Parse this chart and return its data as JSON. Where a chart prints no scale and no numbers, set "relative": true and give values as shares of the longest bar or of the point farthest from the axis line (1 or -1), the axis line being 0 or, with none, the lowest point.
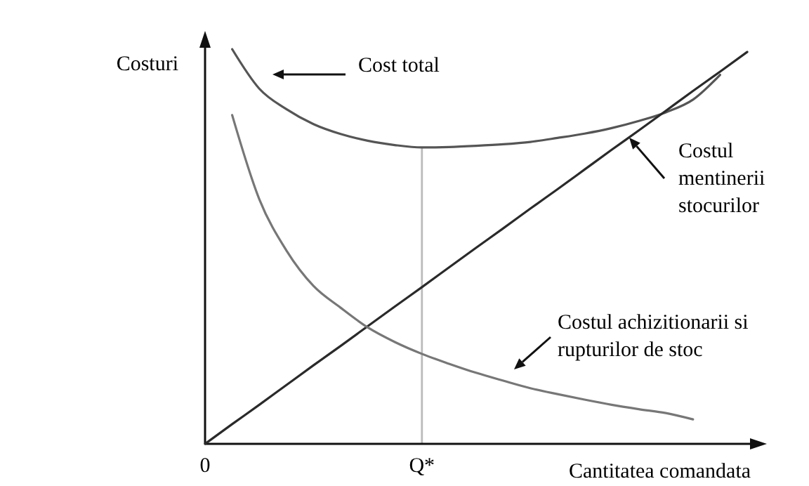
{
  "chart_data": {
    "type": "line",
    "relative": true,
    "ylabel": "Costuri",
    "xlabel": "Cantitatea comandata",
    "marker": "none",
    "line_style": "solid",
    "grid": false,
    "categories": [
      "0",
      null,
      null,
      null,
      null,
      null,
      null,
      null,
      "Q*",
      null,
      null,
      null,
      null,
      null,
      null,
      null,
      null,
      null,
      null,
      null,
      null
    ],
    "series": [
      {
        "color": "#555555",
        "values": [
          null,
          1,
          0.9,
          0.848,
          0.81,
          0.785,
          0.768,
          0.757,
          0.751,
          0.752,
          0.755,
          0.759,
          0.765,
          0.775,
          0.786,
          0.8,
          0.818,
          0.84,
          0.872,
          0.935,
          null
        ]
      },
      {
        "color": "#2a2a2a",
        "values": [
          0,
          0.05,
          0.099,
          0.149,
          0.199,
          0.248,
          0.298,
          0.348,
          0.397,
          0.447,
          0.497,
          0.546,
          0.596,
          0.645,
          0.695,
          0.745,
          0.794,
          0.844,
          0.894,
          0.943,
          0.993
        ]
      },
      {
        "color": "#777777",
        "values": [
          null,
          0.833,
          0.62,
          0.49,
          0.4,
          0.345,
          0.295,
          0.258,
          0.228,
          0.203,
          0.18,
          0.16,
          0.141,
          0.126,
          0.112,
          0.099,
          0.088,
          0.078,
          0.062,
          null,
          null
        ]
      }
    ],
    "ref_lines": [
      {
        "axis": "x",
        "value": "Q*",
        "color": "#bbbbbb"
      }
    ],
    "annotations": [
      "Cost total",
      "Costul mentinerii stocurilor",
      "Costul achizitionarii si rupturilor de stoc"
    ]
  }
}
